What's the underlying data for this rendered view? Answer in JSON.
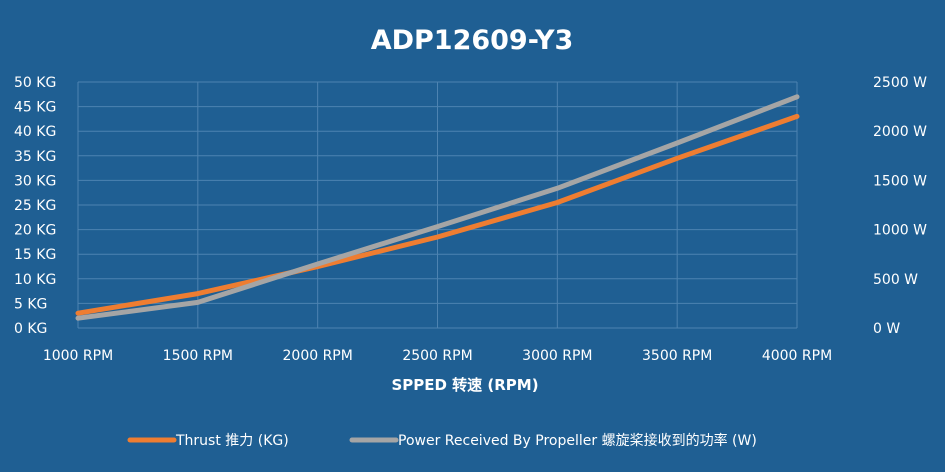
{
  "chart_data": {
    "type": "line",
    "title": "ADP12609-Y3",
    "xlabel": "SPPED 转速 (RPM)",
    "x": [
      1000,
      1500,
      2000,
      2500,
      3000,
      3500,
      4000
    ],
    "x_tick_labels": [
      "1000 RPM",
      "1500 RPM",
      "2000 RPM",
      "2500 RPM",
      "3000 RPM",
      "3500 RPM",
      "4000 RPM"
    ],
    "xlim": [
      1000,
      4000
    ],
    "left_axis": {
      "ylim": [
        0,
        50
      ],
      "tick_labels": [
        "0 KG",
        "5 KG",
        "10 KG",
        "15 KG",
        "20 KG",
        "25 KG",
        "30 KG",
        "35 KG",
        "40 KG",
        "45 KG",
        "50 KG"
      ]
    },
    "right_axis": {
      "ylim": [
        0,
        2500
      ],
      "tick_labels": [
        "0 W",
        "500 W",
        "1000 W",
        "1500 W",
        "2000 W",
        "2500 W"
      ]
    },
    "grid": true,
    "legend_position": "bottom",
    "series": [
      {
        "name": "Thrust 推力 (KG)",
        "axis": "left",
        "color": "#ee7d31",
        "values": [
          3,
          7,
          12.5,
          18.5,
          25.5,
          34.5,
          43
        ]
      },
      {
        "name": "Power Received By Propeller 螺旋桨接收到的功率 (W)",
        "axis": "right",
        "color": "#a5a5a5",
        "values": [
          100,
          260,
          650,
          1030,
          1420,
          1880,
          2350
        ]
      }
    ]
  }
}
